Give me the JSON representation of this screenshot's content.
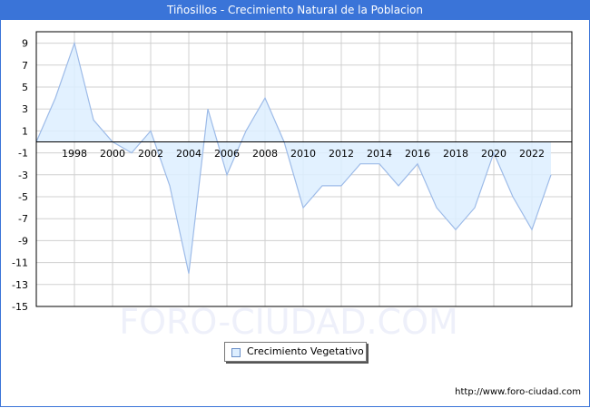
{
  "header": {
    "title": "Tiñosillos - Crecimiento Natural de la Poblacion"
  },
  "colors": {
    "title_bar": "#3a74d8",
    "area_fill": "#ddeeff",
    "area_line": "#9dbbe8",
    "grid": "#d0d0d0"
  },
  "chart_data": {
    "type": "area",
    "title": "Tiñosillos - Crecimiento Natural de la Poblacion",
    "xlabel": "",
    "ylabel": "",
    "x": [
      1996,
      1997,
      1998,
      1999,
      2000,
      2001,
      2002,
      2003,
      2004,
      2005,
      2006,
      2007,
      2008,
      2009,
      2010,
      2011,
      2012,
      2013,
      2014,
      2015,
      2016,
      2017,
      2018,
      2019,
      2020,
      2021,
      2022,
      2023
    ],
    "series": [
      {
        "name": "Crecimiento Vegetativo",
        "values": [
          0,
          4,
          9,
          2,
          0,
          -1,
          1,
          -4,
          -12,
          3,
          -3,
          1,
          4,
          0,
          -6,
          -4,
          -4,
          -2,
          -2,
          -4,
          -2,
          -6,
          -8,
          -6,
          -1,
          -5,
          -8,
          -3
        ]
      }
    ],
    "x_tick_labels": [
      "1998",
      "2000",
      "2002",
      "2004",
      "2006",
      "2008",
      "2010",
      "2012",
      "2014",
      "2016",
      "2018",
      "2020",
      "2022"
    ],
    "y_tick_labels": [
      "9",
      "7",
      "5",
      "3",
      "1",
      "-1",
      "-3",
      "-5",
      "-7",
      "-9",
      "-11",
      "-13",
      "-15"
    ],
    "ylim": [
      -15,
      10
    ],
    "xlim": [
      1996,
      2024
    ],
    "grid": true,
    "legend_position": "bottom-center"
  },
  "legend": {
    "label": "Crecimiento Vegetativo"
  },
  "watermark": {
    "text": "FORO-CIUDAD.COM"
  },
  "footer": {
    "url": "http://www.foro-ciudad.com"
  }
}
